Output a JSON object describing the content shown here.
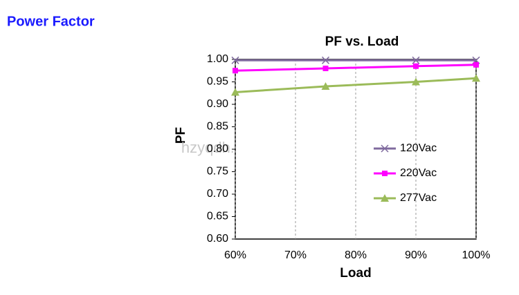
{
  "header": {
    "title": "Power Factor"
  },
  "watermark": "hzyqdh.en.alibaba.com",
  "chart_data": {
    "type": "line",
    "title": "PF vs. Load",
    "x_label": "Load",
    "y_label": "PF",
    "x": [
      60,
      75,
      90,
      100
    ],
    "series": [
      {
        "name": "120Vac",
        "color": "#7f6a9e",
        "marker": "x",
        "values": [
          0.998,
          0.998,
          0.998,
          0.998
        ]
      },
      {
        "name": "220Vac",
        "color": "#ff00ff",
        "marker": "square",
        "values": [
          0.975,
          0.98,
          0.985,
          0.988
        ]
      },
      {
        "name": "277Vac",
        "color": "#9bbb59",
        "marker": "triangle",
        "values": [
          0.927,
          0.94,
          0.95,
          0.958
        ]
      }
    ],
    "xlim": [
      60,
      100
    ],
    "xticks": [
      {
        "value": 60,
        "label": "60%"
      },
      {
        "value": 70,
        "label": "70%"
      },
      {
        "value": 80,
        "label": "80%"
      },
      {
        "value": 90,
        "label": "90%"
      },
      {
        "value": 100,
        "label": "100%"
      }
    ],
    "ylim": [
      0.6,
      1.0
    ],
    "yticks": [
      {
        "value": 0.6,
        "label": "0.60"
      },
      {
        "value": 0.65,
        "label": "0.65"
      },
      {
        "value": 0.7,
        "label": "0.70"
      },
      {
        "value": 0.75,
        "label": "0.75"
      },
      {
        "value": 0.8,
        "label": "0.80"
      },
      {
        "value": 0.85,
        "label": "0.85"
      },
      {
        "value": 0.9,
        "label": "0.90"
      },
      {
        "value": 0.95,
        "label": "0.95"
      },
      {
        "value": 1.0,
        "label": "1.00"
      }
    ],
    "grid": true
  }
}
